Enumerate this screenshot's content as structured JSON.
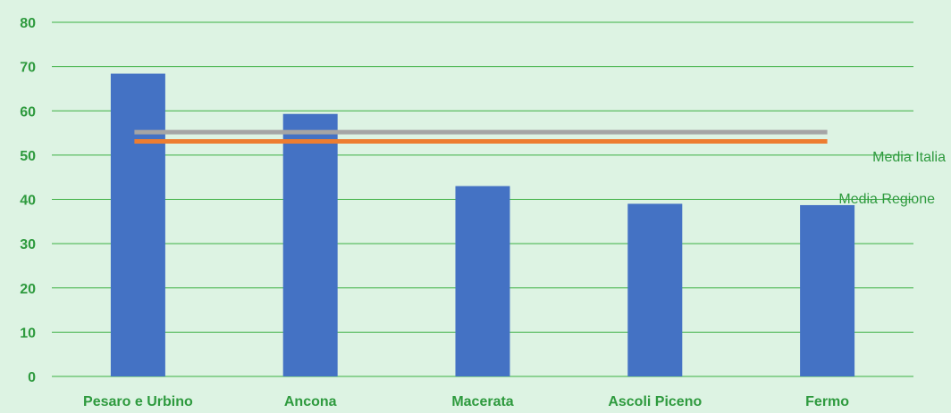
{
  "chart_data": {
    "type": "bar",
    "categories": [
      "Pesaro e Urbino",
      "Ancona",
      "Macerata",
      "Ascoli Piceno",
      "Fermo"
    ],
    "values": [
      68.4,
      59.3,
      43.0,
      39.0,
      38.7
    ],
    "ylim": [
      0,
      80
    ],
    "yticks": [
      0,
      10,
      20,
      30,
      40,
      50,
      60,
      70,
      80
    ],
    "grid": true,
    "reference_lines": [
      {
        "name": "Media Italia",
        "value": 55.2,
        "color": "#A5A5A5"
      },
      {
        "name": "Media Regione",
        "value": 53.1,
        "color": "#ED7D31"
      }
    ],
    "colors": {
      "bar": "#4472C4",
      "grid": "#3CB043",
      "text": "#2E9A3E",
      "background": "#DDF3E3"
    }
  }
}
